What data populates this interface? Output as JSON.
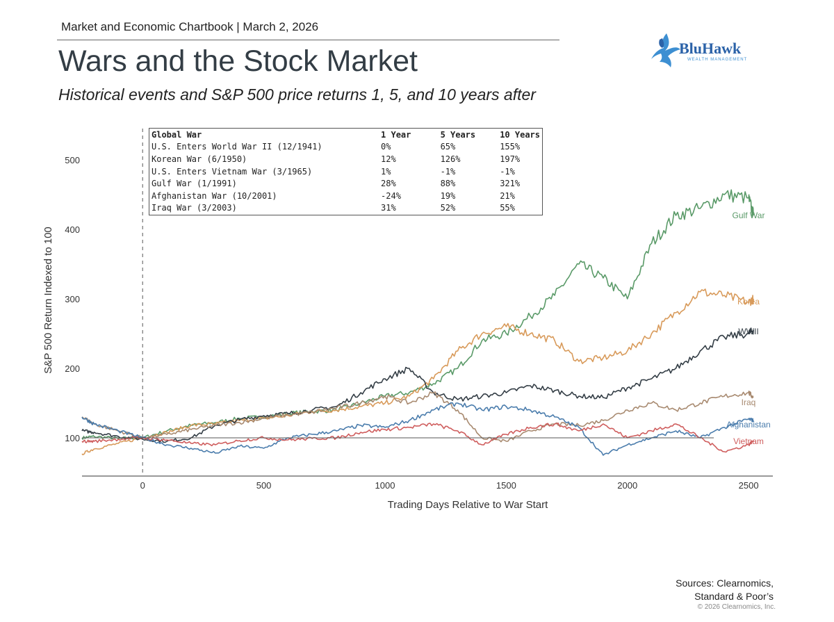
{
  "header": {
    "kicker": "Market and Economic Chartbook | March 2, 2026",
    "title": "Wars and the Stock Market",
    "subtitle": "Historical events and S&P 500 price returns 1, 5, and 10 years after"
  },
  "logo": {
    "name": "BluHawk",
    "tagline": "WEALTH MANAGEMENT",
    "colors": {
      "primary": "#2b62a8",
      "secondary": "#3d8fd2"
    }
  },
  "table": {
    "headers": [
      "Global War",
      "1 Year",
      "5 Years",
      "10 Years"
    ],
    "rows": [
      [
        "U.S. Enters World War II (12/1941)",
        "0%",
        "65%",
        "155%"
      ],
      [
        "Korean War (6/1950)",
        "12%",
        "126%",
        "197%"
      ],
      [
        "U.S. Enters Vietnam War (3/1965)",
        "1%",
        "-1%",
        "-1%"
      ],
      [
        "Gulf War (1/1991)",
        "28%",
        "88%",
        "321%"
      ],
      [
        "Afghanistan War (10/2001)",
        "-24%",
        "19%",
        "21%"
      ],
      [
        "Iraq War (3/2003)",
        "31%",
        "52%",
        "55%"
      ]
    ]
  },
  "chart_data": {
    "type": "line",
    "title": "",
    "xlabel": "Trading Days Relative to War Start",
    "ylabel": "S&P 500 Return Indexed to 100",
    "xlim": [
      -250,
      2600
    ],
    "ylim": [
      45,
      545
    ],
    "xticks": [
      0,
      500,
      1000,
      1500,
      2000,
      2500
    ],
    "yticks": [
      100,
      200,
      300,
      400,
      500
    ],
    "x": [
      -250,
      -200,
      -100,
      0,
      100,
      200,
      300,
      400,
      500,
      600,
      700,
      800,
      900,
      1000,
      1100,
      1200,
      1300,
      1400,
      1500,
      1600,
      1700,
      1800,
      1900,
      2000,
      2100,
      2200,
      2300,
      2400,
      2500,
      2520
    ],
    "reference_lines": [
      {
        "axis": "y",
        "value": 100,
        "style": "solid"
      },
      {
        "axis": "x",
        "value": 0,
        "style": "dashed"
      }
    ],
    "grid": false,
    "legend": "direct labels at right end of each series",
    "series": [
      {
        "name": "Gulf War",
        "color": "#5a9a68",
        "values": [
          100,
          102,
          99,
          100,
          110,
          118,
          122,
          128,
          130,
          135,
          138,
          140,
          150,
          160,
          165,
          178,
          200,
          240,
          250,
          275,
          305,
          350,
          330,
          300,
          380,
          420,
          430,
          450,
          445,
          420
        ]
      },
      {
        "name": "Korea",
        "color": "#d89a5a",
        "values": [
          77,
          84,
          92,
          100,
          108,
          118,
          120,
          125,
          128,
          132,
          138,
          140,
          145,
          150,
          160,
          185,
          225,
          250,
          260,
          250,
          240,
          210,
          215,
          225,
          250,
          280,
          310,
          305,
          295,
          300
        ]
      },
      {
        "name": "WWII",
        "color": "#333d45",
        "values": [
          110,
          108,
          102,
          98,
          95,
          100,
          118,
          126,
          132,
          135,
          140,
          145,
          165,
          185,
          200,
          165,
          155,
          160,
          165,
          175,
          168,
          160,
          158,
          172,
          185,
          200,
          225,
          245,
          250,
          255
        ]
      },
      {
        "name": "Iraq",
        "color": "#a88a70",
        "values": [
          130,
          120,
          110,
          100,
          105,
          112,
          118,
          122,
          128,
          133,
          137,
          143,
          150,
          160,
          150,
          165,
          140,
          100,
          95,
          110,
          120,
          118,
          125,
          140,
          150,
          140,
          150,
          160,
          165,
          158
        ]
      },
      {
        "name": "Afghanistan",
        "color": "#4a7cac",
        "values": [
          130,
          120,
          110,
          100,
          90,
          85,
          78,
          88,
          85,
          100,
          105,
          110,
          118,
          115,
          125,
          140,
          150,
          140,
          145,
          140,
          130,
          115,
          75,
          90,
          100,
          110,
          100,
          115,
          127,
          125
        ]
      },
      {
        "name": "Vietnam",
        "color": "#cf5d5d",
        "values": [
          95,
          95,
          98,
          100,
          97,
          92,
          90,
          96,
          100,
          97,
          99,
          100,
          108,
          112,
          115,
          120,
          110,
          90,
          105,
          115,
          120,
          110,
          120,
          100,
          110,
          120,
          100,
          80,
          90,
          96
        ]
      }
    ]
  },
  "footer": {
    "sources_line1": "Sources: Clearnomics,",
    "sources_line2": "Standard & Poor’s",
    "copyright": "© 2026 Clearnomics, Inc."
  }
}
